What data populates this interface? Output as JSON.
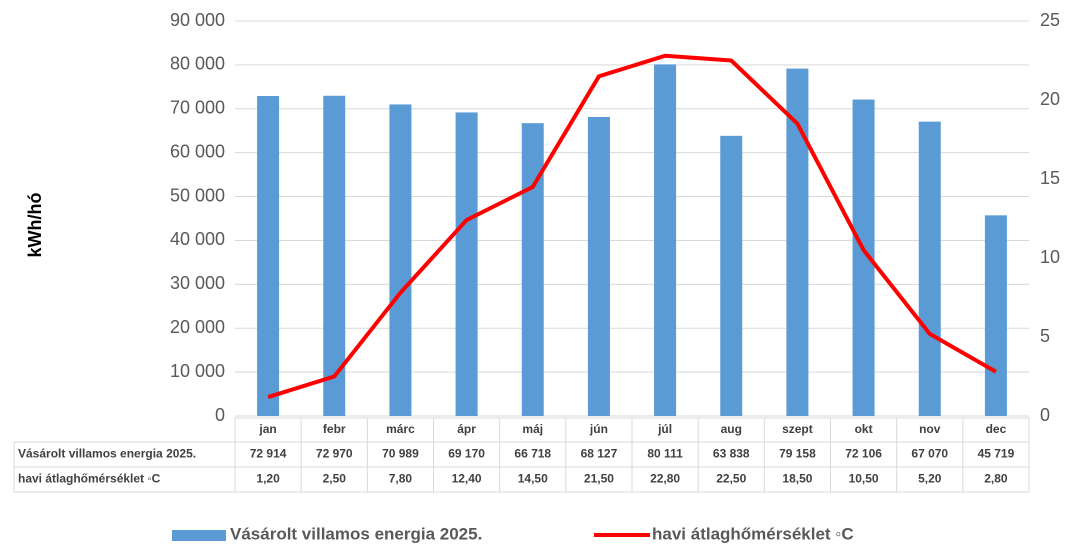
{
  "chart_data": {
    "type": "bar",
    "y_label": "kWh/hó",
    "categories": [
      "jan",
      "febr",
      "márc",
      "ápr",
      "máj",
      "jún",
      "júl",
      "aug",
      "szept",
      "okt",
      "nov",
      "dec"
    ],
    "series": [
      {
        "name": "Vásárolt villamos energia 2025.",
        "type": "bar",
        "color": "#5b9bd5",
        "values": [
          72914,
          72970,
          70989,
          69170,
          66718,
          68127,
          80111,
          63838,
          79158,
          72106,
          67070,
          45719
        ],
        "value_labels": [
          "72 914",
          "72 970",
          "70 989",
          "69 170",
          "66 718",
          "68 127",
          "80 111",
          "63 838",
          "79 158",
          "72 106",
          "67 070",
          "45 719"
        ]
      },
      {
        "name": "havi átlaghőmérséklet ◦C",
        "type": "line",
        "axis": "y2",
        "color": "#ff0000",
        "values": [
          1.2,
          2.5,
          7.8,
          12.4,
          14.5,
          21.5,
          22.8,
          22.5,
          18.5,
          10.5,
          5.2,
          2.8
        ],
        "value_labels": [
          "1,20",
          "2,50",
          "7,80",
          "12,40",
          "14,50",
          "21,50",
          "22,80",
          "22,50",
          "18,50",
          "10,50",
          "5,20",
          "2,80"
        ]
      }
    ],
    "ylim": [
      0,
      90000
    ],
    "yticks": [
      0,
      {
        "value": 10000,
        "label": "10 000"
      },
      {
        "value": 20000,
        "label": "20 000"
      },
      {
        "value": 30000,
        "label": "30 000"
      },
      {
        "value": 40000,
        "label": "40 000"
      },
      {
        "value": 50000,
        "label": "50 000"
      },
      {
        "value": 60000,
        "label": "60 000"
      },
      {
        "value": 70000,
        "label": "70 000"
      },
      {
        "value": 80000,
        "label": "80 000"
      },
      {
        "value": 90000,
        "label": "90 000"
      }
    ],
    "y2lim": [
      0,
      25
    ],
    "y2ticks": [
      0,
      5,
      10,
      15,
      20,
      25
    ],
    "grid": true,
    "legend": "bottom"
  }
}
